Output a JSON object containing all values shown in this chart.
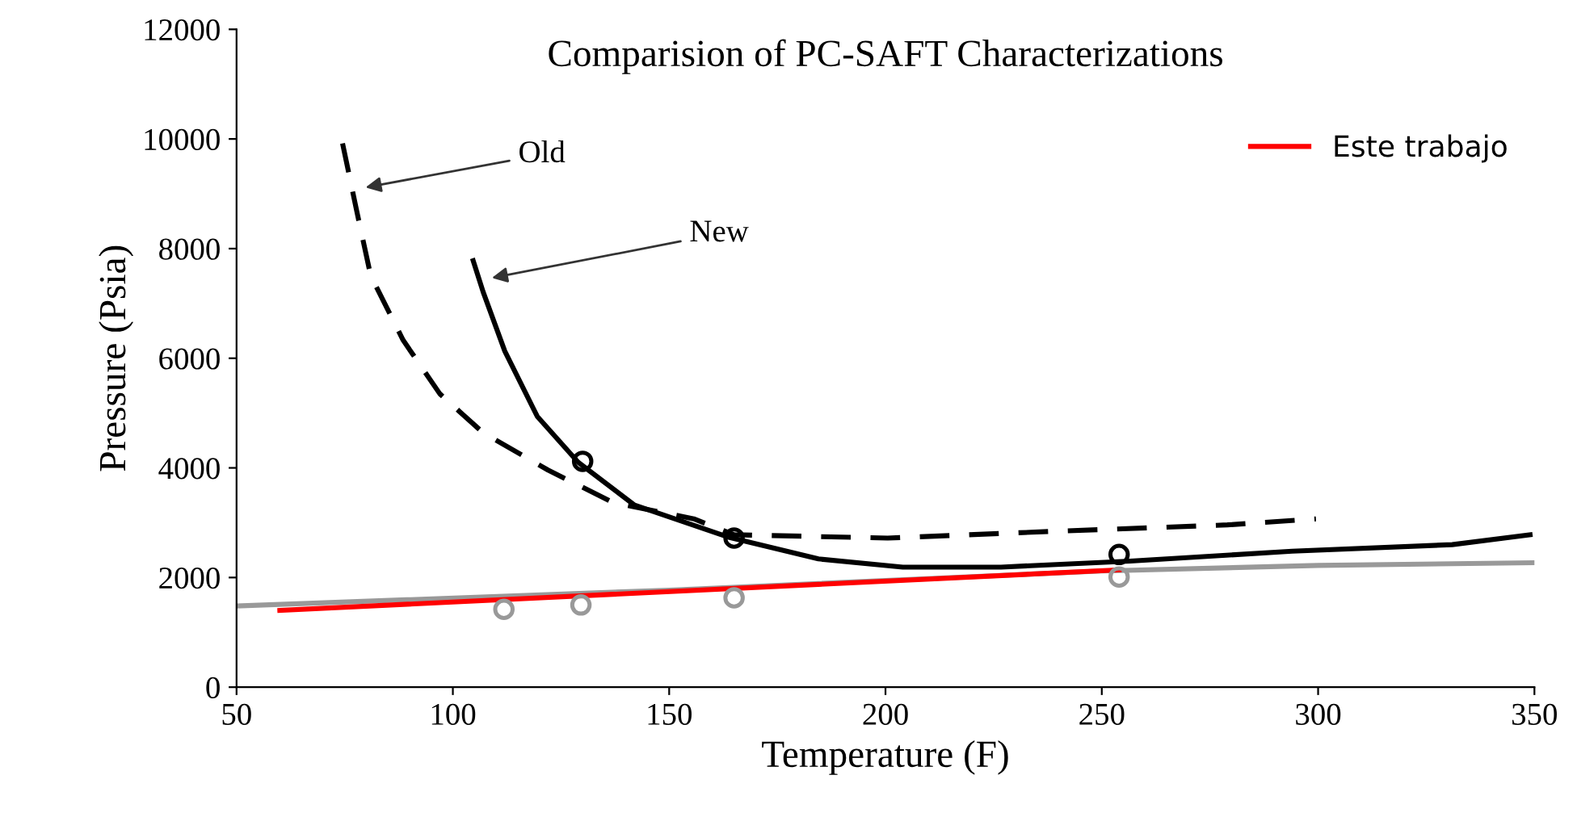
{
  "chart_data": {
    "type": "line",
    "title": "Comparision of PC-SAFT Characterizations",
    "xlabel": "Temperature (F)",
    "ylabel": "Pressure (Psia)",
    "xlim": [
      50,
      350
    ],
    "ylim": [
      0,
      12000
    ],
    "xticks": [
      50,
      100,
      150,
      200,
      250,
      300,
      350
    ],
    "yticks": [
      0,
      2000,
      4000,
      6000,
      8000,
      10000,
      12000
    ],
    "grid": false,
    "legend": "top right",
    "annotations": [
      {
        "text": "Old",
        "x": 78.8,
        "y": 9100
      },
      {
        "text": "New",
        "x": 108,
        "y": 7450
      }
    ],
    "series": [
      {
        "color": "#000000",
        "line_style": "dashed",
        "marker": "none",
        "x": [
          74.5,
          77.9,
          81,
          88.5,
          97,
          107,
          122,
          137,
          155.7,
          165,
          200.5,
          238,
          279,
          299.5
        ],
        "values": [
          9920,
          8640,
          7510,
          6330,
          5350,
          4640,
          3960,
          3370,
          3070,
          2780,
          2720,
          2840,
          2960,
          3070
        ]
      },
      {
        "color": "#000000",
        "line_style": "solid",
        "marker": "none",
        "x": [
          104.7,
          107,
          112,
          119.5,
          129,
          142,
          164,
          184.5,
          204,
          226.7,
          256.6,
          294,
          331,
          349
        ],
        "values": [
          7780,
          7210,
          6130,
          4940,
          4100,
          3320,
          2730,
          2340,
          2190,
          2190,
          2300,
          2480,
          2600,
          2780
        ]
      },
      {
        "color": "#999999",
        "line_style": "solid",
        "marker": "none",
        "x": [
          50,
          150,
          250,
          300,
          350
        ],
        "values": [
          1480,
          1770,
          2120,
          2220,
          2270
        ]
      },
      {
        "name": "Este trabajo",
        "color": "#ff0000",
        "line_style": "solid",
        "marker": "none",
        "x": [
          60,
          254
        ],
        "values": [
          1400,
          2140
        ]
      },
      {
        "type": "scatter",
        "color": "#000000",
        "marker": "circle",
        "x": [
          130,
          165,
          254
        ],
        "values": [
          4120,
          2720,
          2420
        ]
      },
      {
        "type": "scatter",
        "color": "#999999",
        "marker": "circle",
        "x": [
          111.8,
          129.6,
          165,
          254
        ],
        "values": [
          1420,
          1500,
          1630,
          2010
        ]
      }
    ]
  }
}
